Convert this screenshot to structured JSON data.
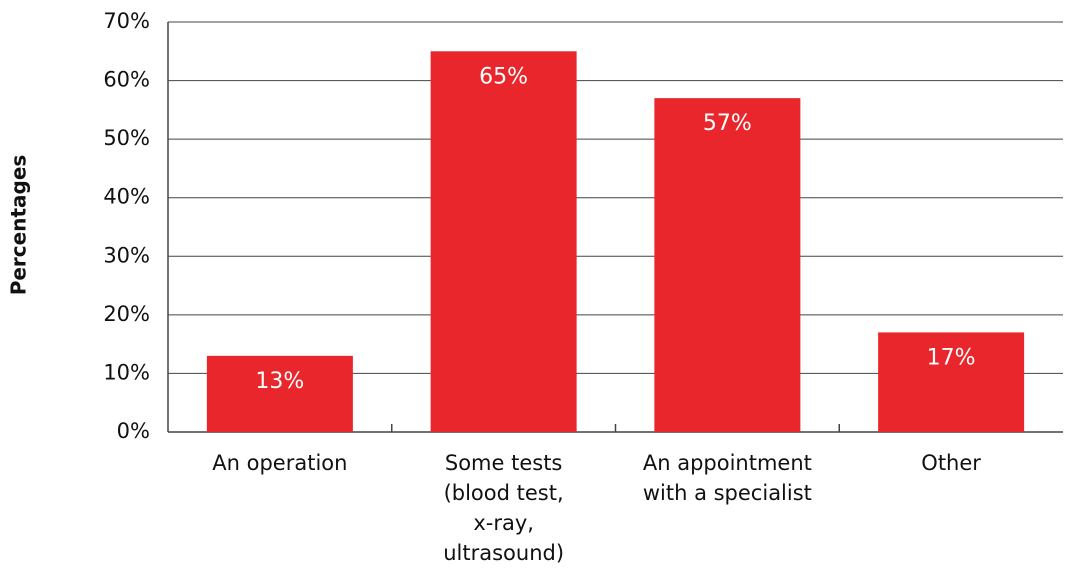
{
  "chart_data": {
    "type": "bar",
    "y_label": "Percentages",
    "categories": [
      "An operation",
      "Some tests\n(blood test,\nx-ray,\nultrasound)",
      "An appointment\nwith a specialist",
      "Other"
    ],
    "values": [
      13,
      65,
      57,
      17
    ],
    "value_labels": [
      "13%",
      "65%",
      "57%",
      "17%"
    ],
    "color": "#e8262b",
    "ylim": [
      0,
      70
    ],
    "yticks": [
      {
        "value": 0,
        "label": "0%"
      },
      {
        "value": 10,
        "label": "10%"
      },
      {
        "value": 20,
        "label": "20%"
      },
      {
        "value": 30,
        "label": "30%"
      },
      {
        "value": 40,
        "label": "40%"
      },
      {
        "value": 50,
        "label": "50%"
      },
      {
        "value": 60,
        "label": "60%"
      },
      {
        "value": 70,
        "label": "70%"
      }
    ],
    "grid": true
  }
}
